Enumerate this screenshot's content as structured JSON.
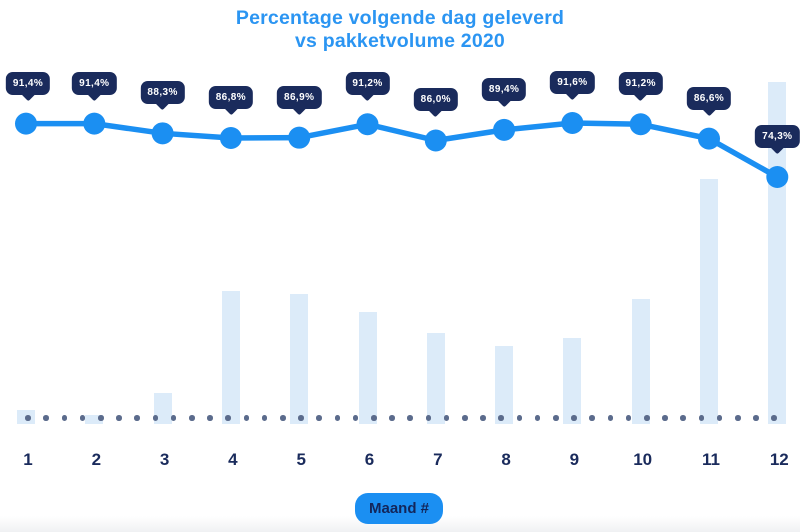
{
  "title": {
    "line1": "Percentage volgende dag geleverd",
    "line2": "vs pakketvolume 2020"
  },
  "x_axis": {
    "label_badge": "Maand #",
    "months": [
      "1",
      "2",
      "3",
      "4",
      "5",
      "6",
      "7",
      "8",
      "9",
      "10",
      "11",
      "12"
    ]
  },
  "chart_data": {
    "type": "combo (line over bars)",
    "title": "Percentage volgende dag geleverd vs pakketvolume 2020",
    "xlabel": "Maand #",
    "ylabel": "",
    "categories": [
      "1",
      "2",
      "3",
      "4",
      "5",
      "6",
      "7",
      "8",
      "9",
      "10",
      "11",
      "12"
    ],
    "series": [
      {
        "name": "Percentage volgende dag geleverd",
        "type": "line",
        "unit": "%",
        "values": [
          91.4,
          91.4,
          88.3,
          86.8,
          86.9,
          91.2,
          86.0,
          89.4,
          91.6,
          91.2,
          86.6,
          74.3
        ],
        "labels": [
          "91,4%",
          "91,4%",
          "88,3%",
          "86,8%",
          "86,9%",
          "91,2%",
          "86,0%",
          "89,4%",
          "91,6%",
          "91,2%",
          "86,6%",
          "74,3%"
        ]
      },
      {
        "name": "Pakketvolume",
        "type": "bar",
        "unit": "relative volume (no value axis shown)",
        "values_pct_of_max": [
          4.1,
          2.6,
          9.1,
          38.9,
          38.0,
          32.7,
          26.6,
          22.8,
          25.1,
          36.5,
          71.6,
          100
        ]
      }
    ],
    "legend": "none",
    "grid": "off",
    "baseline_style": "dotted slate dots along x-axis"
  },
  "colors": {
    "title_blue": "#2b95f2",
    "line_blue": "#1b8ff2",
    "badge_navy": "#1a2b5c",
    "bar_light_blue": "#dcebf9",
    "baseline_dot_slate": "#5b6b8c",
    "axis_label_navy": "#13265a",
    "background": "#ffffff"
  }
}
